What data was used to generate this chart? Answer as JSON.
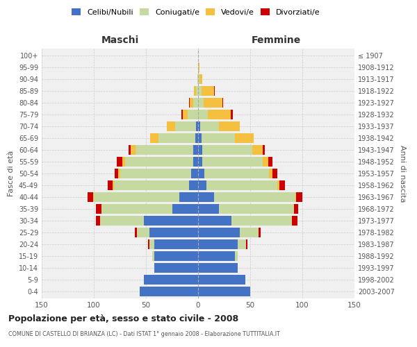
{
  "age_groups": [
    "0-4",
    "5-9",
    "10-14",
    "15-19",
    "20-24",
    "25-29",
    "30-34",
    "35-39",
    "40-44",
    "45-49",
    "50-54",
    "55-59",
    "60-64",
    "65-69",
    "70-74",
    "75-79",
    "80-84",
    "85-89",
    "90-94",
    "95-99",
    "100+"
  ],
  "birth_years": [
    "2003-2007",
    "1998-2002",
    "1993-1997",
    "1988-1992",
    "1983-1987",
    "1978-1982",
    "1973-1977",
    "1968-1972",
    "1963-1967",
    "1958-1962",
    "1953-1957",
    "1948-1952",
    "1943-1947",
    "1938-1942",
    "1933-1937",
    "1928-1932",
    "1923-1927",
    "1918-1922",
    "1913-1917",
    "1908-1912",
    "≤ 1907"
  ],
  "males": {
    "celibi": [
      56,
      52,
      42,
      42,
      42,
      47,
      52,
      25,
      18,
      9,
      7,
      5,
      5,
      3,
      2,
      0,
      0,
      0,
      0,
      0,
      0
    ],
    "coniugati": [
      0,
      0,
      0,
      2,
      5,
      12,
      42,
      68,
      82,
      72,
      68,
      65,
      55,
      35,
      20,
      10,
      5,
      2,
      1,
      0,
      0
    ],
    "vedovi": [
      0,
      0,
      0,
      0,
      0,
      0,
      0,
      0,
      1,
      1,
      2,
      3,
      5,
      8,
      8,
      5,
      3,
      2,
      0,
      0,
      0
    ],
    "divorziati": [
      0,
      0,
      0,
      0,
      1,
      2,
      4,
      5,
      5,
      5,
      3,
      5,
      2,
      0,
      0,
      1,
      1,
      0,
      0,
      0,
      0
    ]
  },
  "females": {
    "nubili": [
      50,
      45,
      38,
      35,
      38,
      40,
      32,
      20,
      15,
      8,
      6,
      4,
      4,
      3,
      2,
      0,
      0,
      0,
      0,
      0,
      0
    ],
    "coniugate": [
      0,
      0,
      0,
      3,
      8,
      18,
      58,
      72,
      78,
      68,
      62,
      58,
      48,
      32,
      18,
      9,
      5,
      3,
      1,
      0,
      0
    ],
    "vedove": [
      0,
      0,
      0,
      0,
      0,
      0,
      0,
      0,
      1,
      2,
      3,
      5,
      10,
      18,
      20,
      22,
      18,
      12,
      3,
      1,
      0
    ],
    "divorziate": [
      0,
      0,
      0,
      0,
      1,
      2,
      5,
      4,
      6,
      5,
      5,
      4,
      2,
      0,
      0,
      2,
      1,
      1,
      0,
      0,
      0
    ]
  },
  "colors": {
    "celibi": "#4472C4",
    "coniugati": "#C5D9A0",
    "vedovi": "#F5C040",
    "divorziati": "#CC0000"
  },
  "title": "Popolazione per età, sesso e stato civile - 2008",
  "subtitle": "COMUNE DI CASTELLO DI BRIANZA (LC) - Dati ISTAT 1° gennaio 2008 - Elaborazione TUTTITALIA.IT",
  "xlabel_left": "Maschi",
  "xlabel_right": "Femmine",
  "ylabel_left": "Fasce di età",
  "ylabel_right": "Anni di nascita",
  "xlim": 150,
  "bg_color": "#FFFFFF",
  "plot_bg": "#F0F0F0",
  "grid_color": "#CCCCCC",
  "legend_labels": [
    "Celibi/Nubili",
    "Coniugati/e",
    "Vedovi/e",
    "Divorziati/e"
  ]
}
